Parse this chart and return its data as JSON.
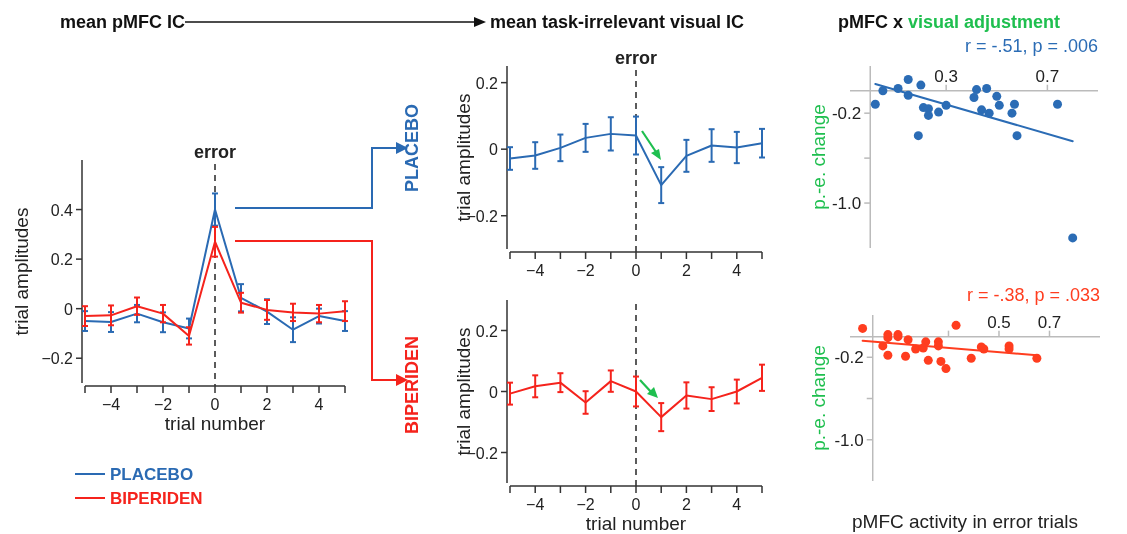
{
  "chart_data": [
    {
      "type": "line",
      "title": "mean pMFC IC",
      "xlabel": "trial number",
      "ylabel": "trial amplitudes",
      "x": [
        -5,
        -4,
        -3,
        -2,
        -1,
        0,
        1,
        2,
        3,
        4,
        5
      ],
      "series": [
        {
          "name": "PLACEBO",
          "color": "#2a6ab3",
          "values": [
            -0.05,
            -0.054,
            -0.02,
            -0.055,
            -0.08,
            0.4,
            0.044,
            -0.012,
            -0.085,
            -0.03,
            -0.05
          ],
          "errors": [
            0.04,
            0.04,
            0.035,
            0.04,
            0.04,
            0.065,
            0.055,
            0.05,
            0.05,
            0.03,
            0.04
          ]
        },
        {
          "name": "BIPERIDEN",
          "color": "#f5231c",
          "values": [
            -0.03,
            -0.027,
            0.01,
            -0.02,
            -0.11,
            0.27,
            0.024,
            -0.005,
            -0.015,
            -0.02,
            -0.01
          ],
          "errors": [
            0.04,
            0.04,
            0.035,
            0.035,
            0.035,
            0.06,
            0.04,
            0.04,
            0.035,
            0.035,
            0.04
          ]
        }
      ],
      "xlim": [
        -5,
        5
      ],
      "xticks": [
        {
          "value": -5,
          "label": null
        },
        {
          "value": -4,
          "label": "−4"
        },
        {
          "value": -3,
          "label": null
        },
        {
          "value": -2,
          "label": "−2"
        },
        {
          "value": -1,
          "label": null
        },
        0,
        {
          "value": 1,
          "label": null
        },
        2,
        {
          "value": 3,
          "label": null
        },
        4,
        {
          "value": 5,
          "label": null
        }
      ],
      "ylim": [
        -0.3,
        0.6
      ],
      "yticks": [
        {
          "value": -0.2,
          "label": "−0.2"
        },
        0,
        0.2,
        0.4
      ],
      "ref_lines": [
        {
          "axis": "x",
          "value": 0,
          "label": "error",
          "line_style": "dashed"
        }
      ],
      "legend": "bottom left"
    },
    {
      "type": "line",
      "title": "mean task-irrelevant visual IC",
      "ylabel": "trial amplitudes",
      "x": [
        -5,
        -4,
        -3,
        -2,
        -1,
        0,
        1,
        2,
        3,
        4,
        5
      ],
      "series": [
        {
          "name": "PLACEBO",
          "color": "#2a6ab3",
          "values": [
            -0.028,
            -0.019,
            0.004,
            0.034,
            0.046,
            0.041,
            -0.108,
            -0.02,
            0.011,
            0.005,
            0.018
          ],
          "errors": [
            0.034,
            0.04,
            0.04,
            0.042,
            0.05,
            0.057,
            0.054,
            0.048,
            0.049,
            0.047,
            0.043
          ]
        }
      ],
      "xlim": [
        -5,
        5
      ],
      "xticks": [
        {
          "value": -5,
          "label": null
        },
        {
          "value": -4,
          "label": "−4"
        },
        {
          "value": -3,
          "label": null
        },
        {
          "value": -2,
          "label": "−2"
        },
        {
          "value": -1,
          "label": null
        },
        0,
        {
          "value": 1,
          "label": null
        },
        2,
        {
          "value": 3,
          "label": null
        },
        4,
        {
          "value": 5,
          "label": null
        }
      ],
      "ylim": [
        -0.3,
        0.25
      ],
      "yticks": [
        {
          "value": -0.2,
          "label": "−0.2"
        },
        0,
        0.2
      ],
      "ref_lines": [
        {
          "axis": "x",
          "value": 0,
          "label": "error",
          "line_style": "dashed"
        }
      ],
      "legend": "left"
    },
    {
      "type": "line",
      "xlabel": "trial number",
      "ylabel": "trial amplitudes",
      "x": [
        -5,
        -4,
        -3,
        -2,
        -1,
        0,
        1,
        2,
        3,
        4,
        5
      ],
      "series": [
        {
          "name": "BIPERIDEN",
          "color": "#f5231c",
          "values": [
            -0.007,
            0.017,
            0.029,
            -0.036,
            0.034,
            0,
            -0.084,
            -0.013,
            -0.025,
            0,
            0.045
          ],
          "errors": [
            0.036,
            0.036,
            0.031,
            0.037,
            0.035,
            0.049,
            0.046,
            0.043,
            0.039,
            0.039,
            0.043
          ]
        }
      ],
      "xlim": [
        -5,
        5
      ],
      "xticks": [
        {
          "value": -5,
          "label": null
        },
        {
          "value": -4,
          "label": "−4"
        },
        {
          "value": -3,
          "label": null
        },
        {
          "value": -2,
          "label": "−2"
        },
        {
          "value": -1,
          "label": null
        },
        0,
        {
          "value": 1,
          "label": null
        },
        2,
        {
          "value": 3,
          "label": null
        },
        4,
        {
          "value": 5,
          "label": null
        }
      ],
      "ylim": [
        -0.3,
        0.3
      ],
      "yticks": [
        {
          "value": -0.2,
          "label": "−0.2"
        },
        0,
        0.2
      ],
      "ref_lines": [
        {
          "axis": "x",
          "value": 0,
          "label": null,
          "line_style": "dashed"
        }
      ],
      "legend": "left"
    },
    {
      "type": "scatter",
      "title": "pMFC x",
      "subtitle": "visual adjustment",
      "ylabel": "p.-e. change",
      "annotations": [
        "r = -.51, p = .006"
      ],
      "series": [
        {
          "color": "#2b6cb5",
          "marker": "circle",
          "x": [
            0.02,
            0.05,
            0.11,
            0.15,
            0.15,
            0.2,
            0.19,
            0.21,
            0.23,
            0.23,
            0.27,
            0.3,
            0.41,
            0.42,
            0.46,
            0.44,
            0.47,
            0.5,
            0.51,
            0.57,
            0.56,
            0.58,
            0.74,
            0.8
          ],
          "values": [
            -0.12,
            0,
            0.02,
            0.1,
            -0.04,
            0.05,
            -0.4,
            -0.15,
            -0.16,
            -0.22,
            -0.19,
            -0.13,
            -0.06,
            0.01,
            0.02,
            -0.17,
            -0.2,
            -0.05,
            -0.13,
            -0.12,
            -0.2,
            -0.4,
            -0.12,
            -1.31
          ]
        },
        {
          "type": "line",
          "marker": "none",
          "color": "#2b6cb5",
          "x": [
            0.02,
            0.8
          ],
          "values": [
            0.06,
            -0.45
          ]
        }
      ],
      "xlim": [
        -0.08,
        0.9
      ],
      "xticks": [
        0.3,
        0.7
      ],
      "ylim": [
        -1.4,
        0.22
      ],
      "yticks": [
        -0.2,
        {
          "value": -0.6,
          "label": null
        },
        {
          "value": -1,
          "label": "-1.0"
        }
      ]
    },
    {
      "type": "scatter",
      "xlabel": "pMFC activity in error trials",
      "ylabel": "p.-e. change",
      "annotations": [
        "r = -.38, p = .033"
      ],
      "series": [
        {
          "color": "#ff3d1f",
          "marker": "circle",
          "x": [
            -0.04,
            0.04,
            0.06,
            0.06,
            0.06,
            0.1,
            0.1,
            0.14,
            0.13,
            0.17,
            0.21,
            0.2,
            0.22,
            0.26,
            0.26,
            0.27,
            0.29,
            0.33,
            0.39,
            0.43,
            0.44,
            0.54,
            0.54,
            0.65
          ],
          "values": [
            0.08,
            -0.09,
            0.02,
            -0.01,
            -0.18,
            0,
            0.02,
            -0.03,
            -0.19,
            -0.12,
            -0.05,
            -0.11,
            -0.23,
            -0.05,
            -0.09,
            -0.24,
            -0.31,
            0.11,
            -0.21,
            -0.1,
            -0.12,
            -0.09,
            -0.12,
            -0.21
          ]
        },
        {
          "type": "line",
          "marker": "none",
          "color": "#ff3d1f",
          "x": [
            -0.04,
            0.65
          ],
          "values": [
            -0.04,
            -0.18
          ]
        }
      ],
      "xlim": [
        -0.09,
        0.9
      ],
      "xticks": [
        {
          "value": 0.3,
          "label": null
        },
        0.5,
        0.7
      ],
      "ylim": [
        -1.4,
        0.21
      ],
      "yticks": [
        -0.2,
        {
          "value": -0.6,
          "label": null
        },
        {
          "value": -1,
          "label": "-1.0"
        }
      ]
    }
  ]
}
